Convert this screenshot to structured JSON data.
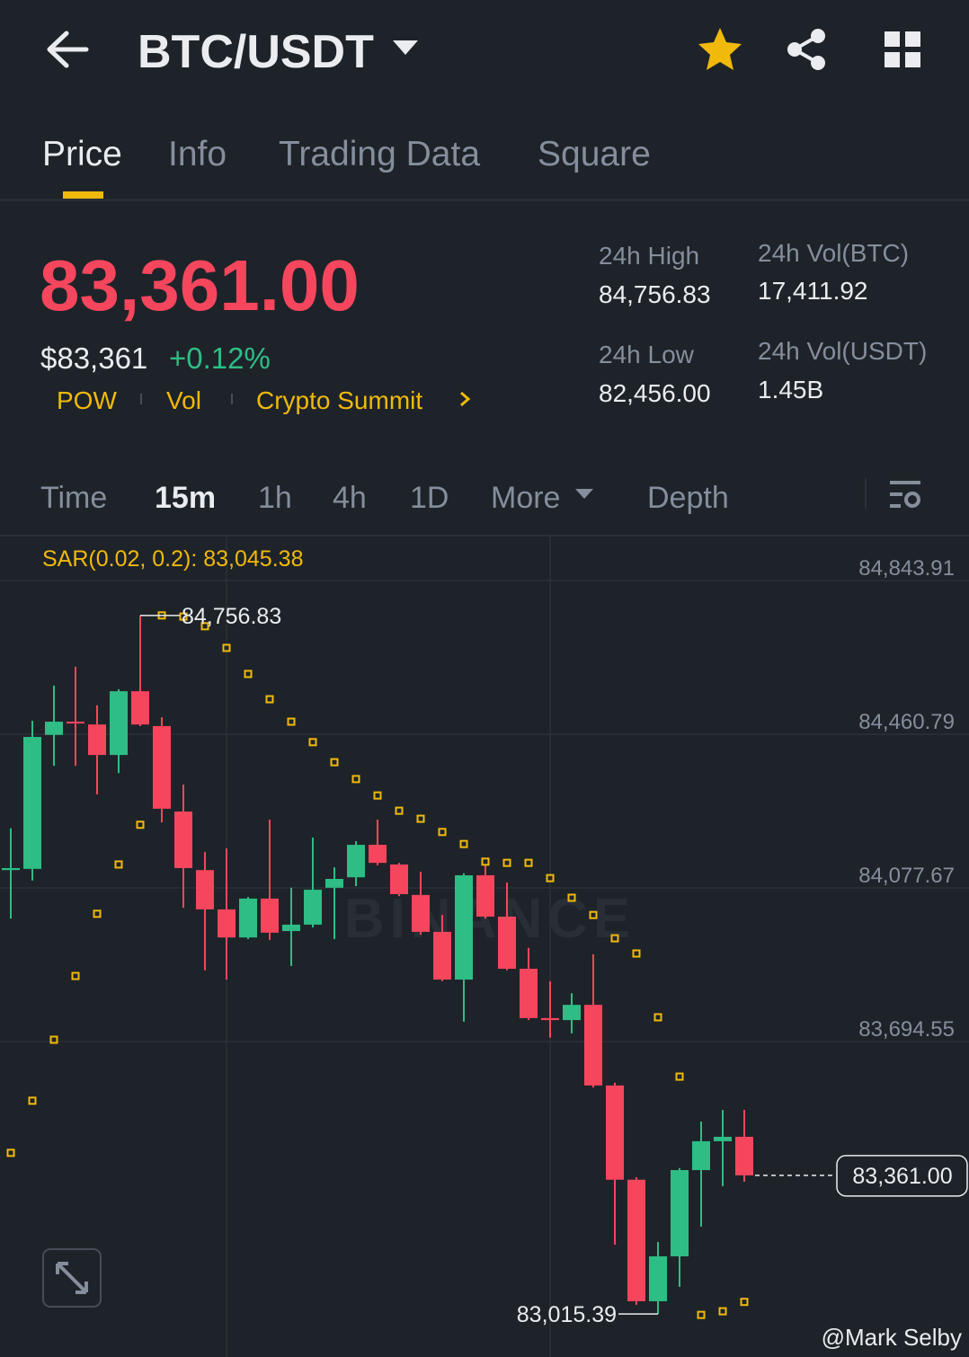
{
  "header": {
    "symbol": "BTC/USDT"
  },
  "tabs": [
    "Price",
    "Info",
    "Trading Data",
    "Square"
  ],
  "ticker": {
    "last_price": "83,361.00",
    "usd_price": "$83,361",
    "change": "+0.12%",
    "tags": [
      "POW",
      "Vol",
      "Crypto Summit"
    ]
  },
  "stats": [
    {
      "label": "24h High",
      "value": "84,756.83"
    },
    {
      "label": "24h Vol(BTC)",
      "value": "17,411.92"
    },
    {
      "label": "24h Low",
      "value": "82,456.00"
    },
    {
      "label": "24h Vol(USDT)",
      "value": "1.45B"
    }
  ],
  "intervals": [
    "Time",
    "15m",
    "1h",
    "4h",
    "1D",
    "More",
    "Depth"
  ],
  "brand_watermark": "BINANCE",
  "watermark": "@Mark Selby",
  "chart_data": {
    "type": "candlestick",
    "indicator_label": "SAR(0.02, 0.2): 83,045.38",
    "open": [
      84122,
      84125,
      84459,
      84492,
      84485,
      84409,
      84568,
      84481,
      84268,
      84122,
      84024,
      83954,
      84051,
      83970,
      83986,
      84078,
      84104,
      84185,
      84136,
      84060,
      83968,
      83849,
      84109,
      84006,
      83876,
      83753,
      83748,
      83786,
      83585,
      83350,
      83047,
      83159,
      83374,
      83446,
      83457
    ],
    "high": [
      84226,
      84494,
      84582,
      84629,
      84533,
      84573,
      84756.83,
      84503,
      84335,
      84167,
      84176,
      84055,
      84248,
      84078,
      84203,
      84129,
      84194,
      84248,
      84140,
      84118,
      84010,
      84114,
      84136,
      84091,
      83928,
      83845,
      83815,
      83912,
      83592,
      83356,
      83195,
      83379,
      83495,
      83524,
      83524
    ],
    "low": [
      84001,
      84096,
      84382,
      84382,
      84311,
      84364,
      84481,
      84241,
      84028,
      83872,
      83849,
      83950,
      83948,
      83883,
      83979,
      83950,
      84082,
      84134,
      84057,
      83961,
      83845,
      83744,
      84001,
      83872,
      83748,
      83704,
      83715,
      83580,
      83188,
      83038,
      83015.39,
      83083,
      83233,
      83334,
      83345
    ],
    "close": [
      84127,
      84454,
      84492,
      84488,
      84409,
      84568,
      84485,
      84275,
      84127,
      84024,
      83954,
      84051,
      83966,
      83986,
      84073,
      84100,
      84185,
      84140,
      84062,
      83968,
      83849,
      84109,
      84006,
      83876,
      83753,
      83748,
      83786,
      83585,
      83350,
      83047,
      83159,
      83374,
      83446,
      83457,
      83361
    ],
    "sar": [
      83417,
      83547,
      83699,
      83858,
      84013,
      84136,
      84235,
      84757,
      84754,
      84730,
      84676,
      84611,
      84548,
      84492,
      84441,
      84391,
      84349,
      84308,
      84270,
      84250,
      84217,
      84187,
      84143,
      84140,
      84140,
      84102,
      84053,
      84010,
      83952,
      83914,
      83755,
      83607,
      83013,
      83022,
      83045.38
    ],
    "up_color": "#2ebd85",
    "down_color": "#f6465d",
    "sar_color": "#f0b90b",
    "ylim": [
      82919.2,
      84953.7
    ],
    "yticks": [
      {
        "value": 84843.91,
        "label": "84,843.91"
      },
      {
        "value": 84460.79,
        "label": "84,460.79"
      },
      {
        "value": 84077.67,
        "label": "84,077.67"
      },
      {
        "value": 83694.55,
        "label": "83,694.55"
      }
    ],
    "grid": true,
    "high_label": {
      "value": 84756.83,
      "label": "84,756.83"
    },
    "low_label": {
      "value": 83015.39,
      "label": "83,015.39"
    },
    "last_price": {
      "value": 83361,
      "label": "83,361.00"
    }
  }
}
